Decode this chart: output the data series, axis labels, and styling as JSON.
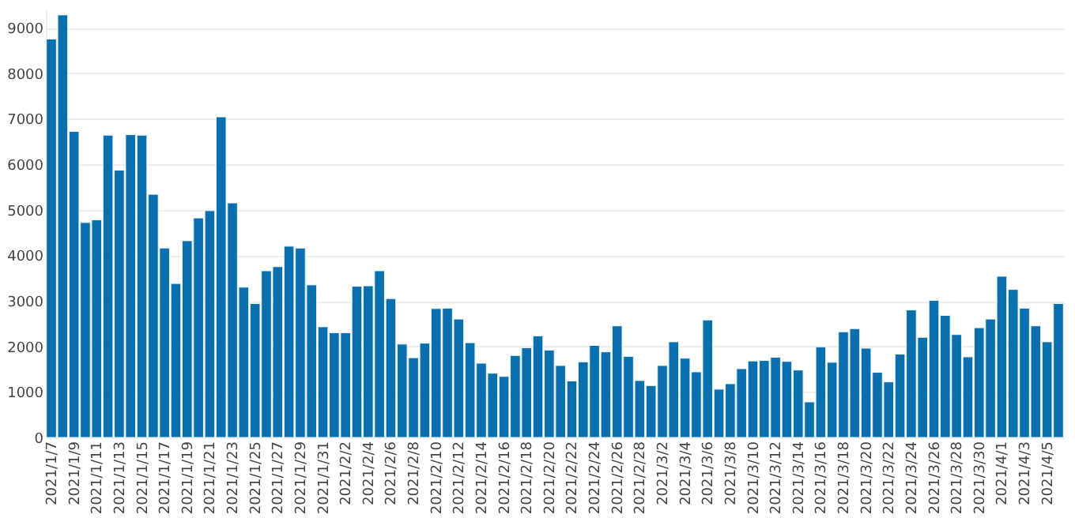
{
  "chart_data": {
    "type": "bar",
    "categories": [
      "2021/1/7",
      null,
      "2021/1/9",
      null,
      "2021/1/11",
      null,
      "2021/1/13",
      null,
      "2021/1/15",
      null,
      "2021/1/17",
      null,
      "2021/1/19",
      null,
      "2021/1/21",
      null,
      "2021/1/23",
      null,
      "2021/1/25",
      null,
      "2021/1/27",
      null,
      "2021/1/29",
      null,
      "2021/1/31",
      null,
      "2021/2/2",
      null,
      "2021/2/4",
      null,
      "2021/2/6",
      null,
      "2021/2/8",
      null,
      "2021/2/10",
      null,
      "2021/2/12",
      null,
      "2021/2/14",
      null,
      "2021/2/16",
      null,
      "2021/2/18",
      null,
      "2021/2/20",
      null,
      "2021/2/22",
      null,
      "2021/2/24",
      null,
      "2021/2/26",
      null,
      "2021/2/28",
      null,
      "2021/3/2",
      null,
      "2021/3/4",
      null,
      "2021/3/6",
      null,
      "2021/3/8",
      null,
      "2021/3/10",
      null,
      "2021/3/12",
      null,
      "2021/3/14",
      null,
      "2021/3/16",
      null,
      "2021/3/18",
      null,
      "2021/3/20",
      null,
      "2021/3/22",
      null,
      "2021/3/24",
      null,
      "2021/3/26",
      null,
      "2021/3/28",
      null,
      "2021/3/30",
      null,
      "2021/4/1",
      null,
      "2021/4/3",
      null,
      "2021/4/5",
      null
    ],
    "values": [
      8750,
      9280,
      6720,
      4720,
      4780,
      6640,
      5870,
      6650,
      6640,
      5340,
      4160,
      3380,
      4320,
      4820,
      4980,
      7040,
      5150,
      3300,
      2940,
      3660,
      3750,
      4200,
      4160,
      3350,
      2430,
      2300,
      2300,
      3320,
      3330,
      3660,
      3050,
      2050,
      1750,
      2070,
      2830,
      2840,
      2600,
      2080,
      1630,
      1410,
      1340,
      1800,
      1970,
      2230,
      1920,
      1580,
      1240,
      1660,
      2020,
      1880,
      2450,
      1780,
      1250,
      1140,
      1580,
      2100,
      1740,
      1440,
      2580,
      1060,
      1180,
      1510,
      1680,
      1690,
      1760,
      1670,
      1480,
      780,
      1990,
      1650,
      2320,
      2390,
      1960,
      1430,
      1220,
      1830,
      2800,
      2200,
      3010,
      2680,
      2260,
      1770,
      2410,
      2600,
      3540,
      3250,
      2840,
      2450,
      2100,
      2940
    ],
    "color": "#0b6fae",
    "ylim": [
      0,
      9400
    ],
    "yticks": [
      0,
      1000,
      2000,
      3000,
      4000,
      5000,
      6000,
      7000,
      8000,
      9000
    ],
    "grid": "y"
  }
}
